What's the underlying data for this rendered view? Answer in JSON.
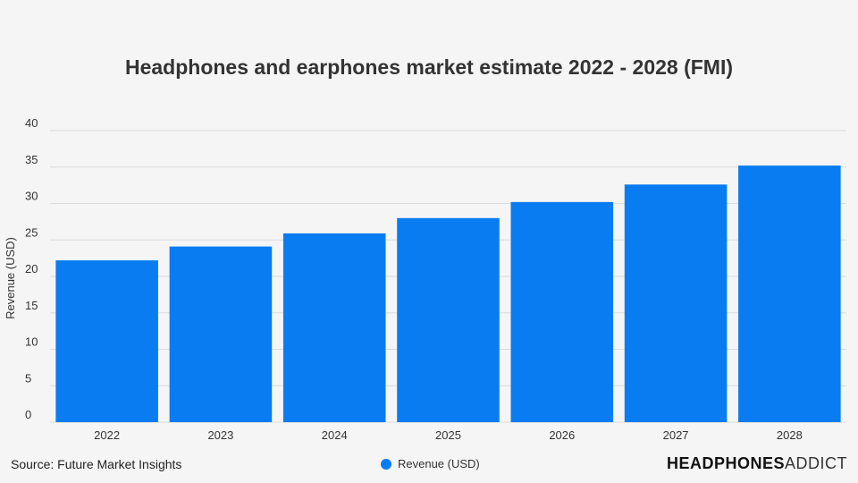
{
  "chart_data": {
    "type": "bar",
    "title": "Headphones and earphones market estimate 2022 - 2028 (FMI)",
    "xlabel": "",
    "ylabel": "Revenue (USD)",
    "categories": [
      "2022",
      "2023",
      "2024",
      "2025",
      "2026",
      "2027",
      "2028"
    ],
    "series": [
      {
        "name": "Revenue (USD)",
        "values": [
          22.2,
          24.1,
          25.9,
          28.0,
          30.2,
          32.6,
          35.2
        ]
      }
    ],
    "ylim": [
      0,
      40
    ],
    "yticks": [
      "0",
      "5",
      "10",
      "15",
      "20",
      "25",
      "30",
      "35",
      "40"
    ],
    "grid": true,
    "legend": "bottom-center",
    "bar_color": "#0a7cf2"
  },
  "footer": {
    "source": "Source: Future Market Insights",
    "legend_label": "Revenue (USD)",
    "brand_part1": "HEADPHONES",
    "brand_part2": "ADDICT"
  }
}
